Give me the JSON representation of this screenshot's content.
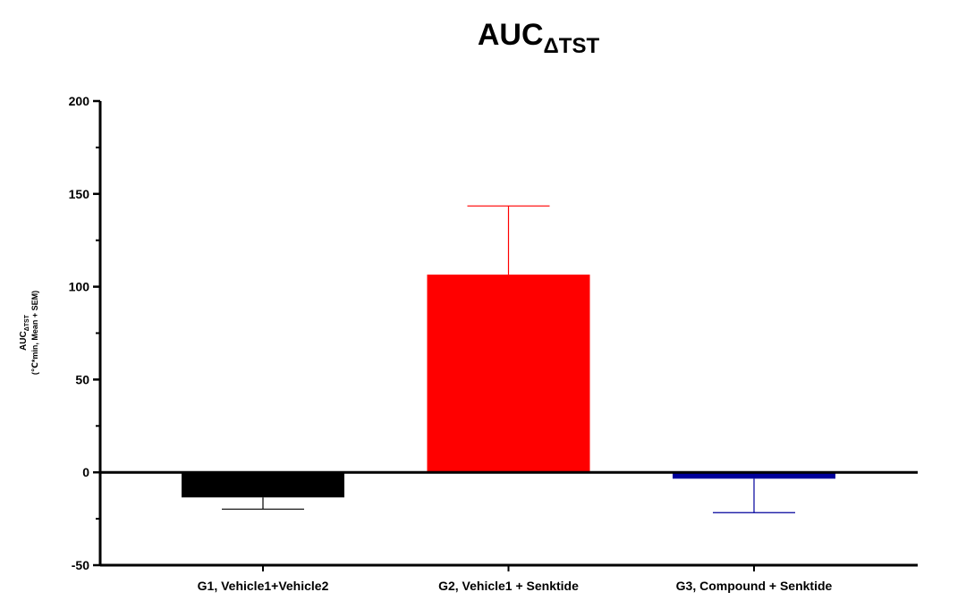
{
  "chart_data": {
    "type": "bar",
    "title": {
      "main": "AUC",
      "subscript": "ΔTST"
    },
    "y_label": {
      "main": "AUC",
      "subscript": "ΔTST",
      "units": "(℃*min, Mean + SEM)"
    },
    "categories": [
      "G1, Vehicle1+Vehicle2",
      "G2, Vehicle1 + Senktide",
      "G3, Compound + Senktide"
    ],
    "values": [
      -13.5,
      106.5,
      -3.4
    ],
    "errors": [
      6.3,
      37,
      18.3
    ],
    "colors": [
      "#000000",
      "#ff0000",
      "#00009c"
    ],
    "ylim": [
      -50,
      200
    ],
    "yticks": [
      -50,
      0,
      50,
      100,
      150,
      200
    ],
    "yticks_minor": [
      -25,
      25,
      75,
      125,
      175
    ]
  }
}
